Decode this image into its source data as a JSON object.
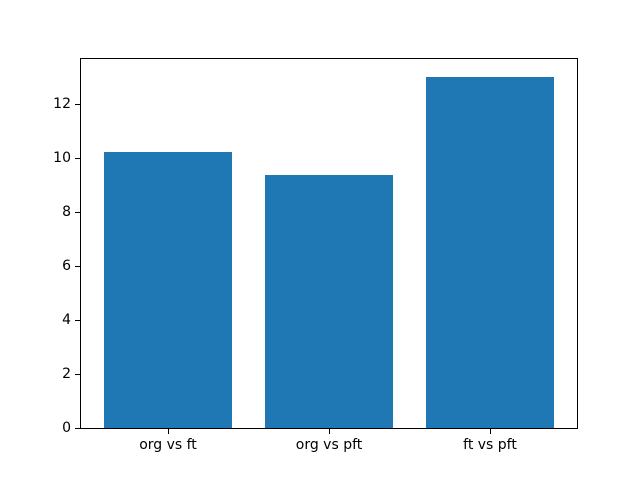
{
  "chart_data": {
    "type": "bar",
    "title": "",
    "xlabel": "",
    "ylabel": "",
    "categories": [
      "org vs ft",
      "org vs pft",
      "ft vs pft"
    ],
    "values": [
      10.2,
      9.35,
      13.0
    ],
    "yticks": [
      0,
      2,
      4,
      6,
      8,
      10,
      12
    ],
    "ylim": [
      0,
      13.65
    ],
    "xlim": [
      -0.54,
      2.54
    ],
    "bar_width": 0.8,
    "bar_color": "#1f77b4",
    "background_color": "#ffffff",
    "frame_color": "#000000",
    "grid": "off",
    "legend": "none"
  }
}
